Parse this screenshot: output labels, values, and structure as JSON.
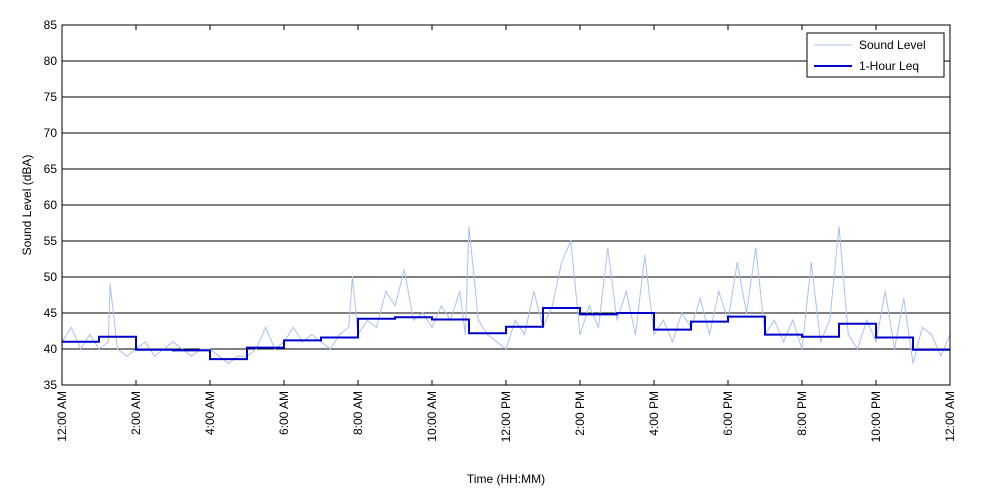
{
  "chart_data": {
    "type": "line",
    "title": "",
    "xlabel": "Time (HH:MM)",
    "ylabel": "Sound Level (dBA)",
    "ylim": [
      35,
      85
    ],
    "y_ticks": [
      35,
      40,
      45,
      50,
      55,
      60,
      65,
      70,
      75,
      80,
      85
    ],
    "xlim_hours": [
      0,
      24
    ],
    "x_ticks": [
      {
        "hour": 0,
        "label": "12:00 AM"
      },
      {
        "hour": 2,
        "label": "2:00 AM"
      },
      {
        "hour": 4,
        "label": "4:00 AM"
      },
      {
        "hour": 6,
        "label": "6:00 AM"
      },
      {
        "hour": 8,
        "label": "8:00 AM"
      },
      {
        "hour": 10,
        "label": "10:00 AM"
      },
      {
        "hour": 12,
        "label": "12:00 PM"
      },
      {
        "hour": 14,
        "label": "2:00 PM"
      },
      {
        "hour": 16,
        "label": "4:00 PM"
      },
      {
        "hour": 18,
        "label": "6:00 PM"
      },
      {
        "hour": 20,
        "label": "8:00 PM"
      },
      {
        "hour": 22,
        "label": "10:00 PM"
      },
      {
        "hour": 24,
        "label": "12:00 AM"
      }
    ],
    "grid": "horizontal",
    "legend_position": "top-right",
    "series": [
      {
        "name": "Sound Level",
        "color": "#a9c1f2",
        "style": "thin-line",
        "hour": [
          0,
          0.25,
          0.5,
          0.75,
          1,
          1.25,
          1.3,
          1.5,
          1.75,
          2,
          2.25,
          2.5,
          2.75,
          3,
          3.25,
          3.5,
          3.75,
          4,
          4.25,
          4.5,
          4.75,
          5,
          5.25,
          5.5,
          5.75,
          6,
          6.25,
          6.5,
          6.75,
          7,
          7.25,
          7.5,
          7.75,
          7.85,
          8,
          8.25,
          8.5,
          8.75,
          9,
          9.25,
          9.5,
          9.75,
          10,
          10.25,
          10.5,
          10.75,
          10.9,
          11,
          11.25,
          11.5,
          11.75,
          12,
          12.25,
          12.5,
          12.75,
          13,
          13.25,
          13.5,
          13.75,
          14,
          14.25,
          14.5,
          14.75,
          15,
          15.25,
          15.5,
          15.75,
          16,
          16.25,
          16.5,
          16.75,
          17,
          17.25,
          17.5,
          17.75,
          18,
          18.25,
          18.5,
          18.75,
          19,
          19.25,
          19.5,
          19.75,
          20,
          20.25,
          20.5,
          20.75,
          21,
          21.25,
          21.5,
          21.75,
          22,
          22.25,
          22.5,
          22.75,
          23,
          23.25,
          23.5,
          23.75,
          24
        ],
        "value": [
          41,
          43,
          40,
          42,
          40,
          41,
          49,
          40,
          39,
          40,
          41,
          39,
          40,
          41,
          40,
          39,
          40,
          40,
          39,
          38,
          39,
          39,
          40,
          43,
          40,
          41,
          43,
          41,
          42,
          41,
          40,
          42,
          43,
          50,
          42,
          44,
          43,
          48,
          46,
          51,
          44,
          45,
          43,
          46,
          44,
          48,
          42,
          57,
          44,
          42,
          41,
          40,
          44,
          42,
          48,
          43,
          46,
          52,
          55,
          42,
          46,
          43,
          54,
          44,
          48,
          42,
          53,
          42,
          44,
          41,
          45,
          43,
          47,
          42,
          48,
          44,
          52,
          45,
          54,
          42,
          44,
          41,
          44,
          40,
          52,
          41,
          44,
          57,
          42,
          40,
          44,
          41,
          48,
          40,
          47,
          38,
          43,
          42,
          39,
          42,
          41,
          38
        ]
      },
      {
        "name": "1-Hour Leq",
        "color": "#0000cc",
        "style": "step",
        "hour_start": [
          0,
          1,
          2,
          3,
          4,
          5,
          6,
          7,
          8,
          9,
          10,
          11,
          12,
          13,
          14,
          15,
          16,
          17,
          18,
          19,
          20,
          21,
          22,
          23
        ],
        "value": [
          41.0,
          41.7,
          39.9,
          39.8,
          38.6,
          40.2,
          41.2,
          41.6,
          44.2,
          44.4,
          44.1,
          42.2,
          43.1,
          45.7,
          44.8,
          45.0,
          42.7,
          43.8,
          44.5,
          42.0,
          41.7,
          43.5,
          41.6,
          39.9
        ]
      }
    ]
  }
}
